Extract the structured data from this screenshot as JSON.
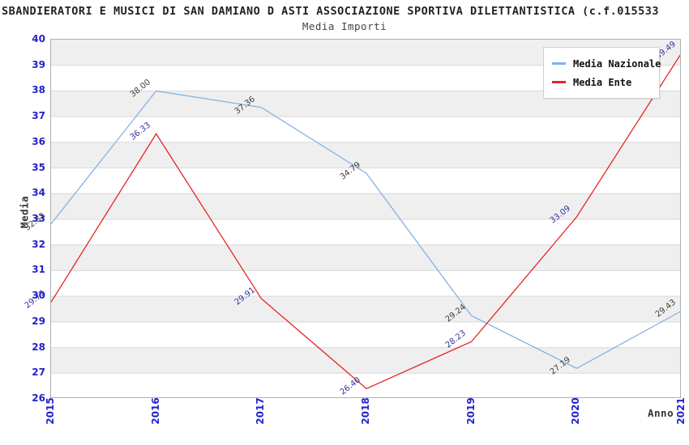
{
  "title": "SBANDIERATORI E MUSICI DI SAN DAMIANO D ASTI ASSOCIAZIONE SPORTIVA DILETTANTISTICA (c.f.015533",
  "subtitle": "Media Importi",
  "legend": {
    "items": [
      {
        "label": "Media Nazionale",
        "color": "#85b3e3"
      },
      {
        "label": "Media Ente",
        "color": "#e32626"
      }
    ]
  },
  "axes": {
    "y_label": "Media",
    "x_label": "Anno",
    "y_ticks": [
      26,
      27,
      28,
      29,
      30,
      31,
      32,
      33,
      34,
      35,
      36,
      37,
      38,
      39,
      40
    ],
    "x_ticks": [
      "2015",
      "2016",
      "2017",
      "2018",
      "2019",
      "2020",
      "2021"
    ]
  },
  "chart_data": {
    "type": "line",
    "title": "Media Importi",
    "x": [
      "2015",
      "2016",
      "2017",
      "2018",
      "2019",
      "2020",
      "2021"
    ],
    "series": [
      {
        "name": "Media Nazionale",
        "color": "#85b3e3",
        "label_color": "#3d3d3d",
        "values": [
          32.82,
          38.0,
          37.36,
          34.79,
          29.24,
          27.19,
          29.43
        ]
      },
      {
        "name": "Media Ente",
        "color": "#e32626",
        "label_color": "#34349b",
        "values": [
          29.77,
          36.33,
          29.91,
          26.4,
          28.23,
          33.09,
          39.49
        ]
      }
    ],
    "xlabel": "Anno",
    "ylabel": "Media",
    "ylim": [
      26,
      40
    ],
    "grid": true,
    "legend_position": "top-right",
    "band_colors": [
      "#efefef",
      "#ffffff"
    ]
  },
  "colors": {
    "tick_label": "#2323cc",
    "gridline": "#d9d9d9",
    "plot_border": "#b0b0b0",
    "title": "#222222"
  }
}
